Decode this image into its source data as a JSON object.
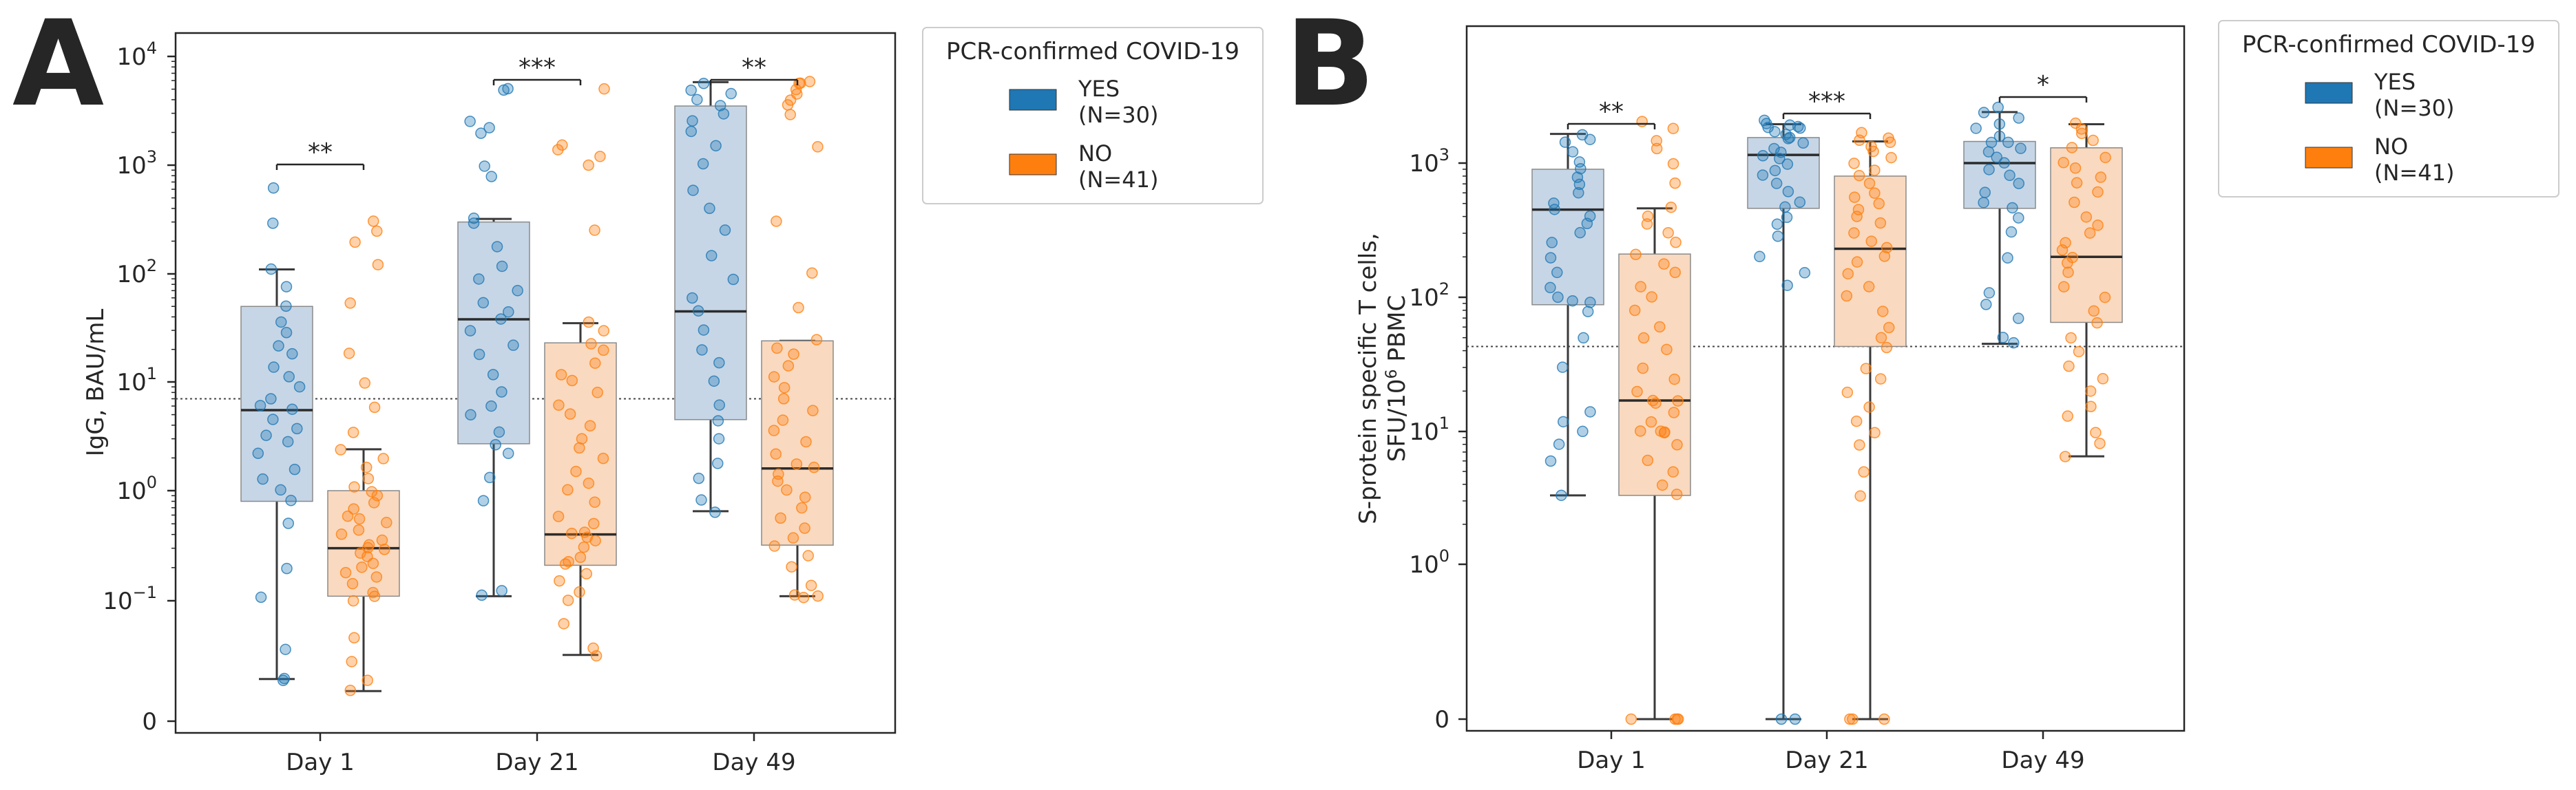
{
  "colors": {
    "yes": "#1f77b4",
    "no": "#ff7f0e",
    "yes_box": "#c6d6e6",
    "no_box": "#f9d9bf",
    "axis": "#262626",
    "threshold": "#444444"
  },
  "panels": [
    {
      "letter": "A"
    },
    {
      "letter": "B"
    }
  ],
  "legend": {
    "title": "PCR-confirmed COVID-19",
    "entries": [
      {
        "label": "YES",
        "n": "(N=30)"
      },
      {
        "label": "NO",
        "n": "(N=41)"
      }
    ]
  },
  "chart_data": [
    {
      "type": "box",
      "panel": "A",
      "scale": "symlog",
      "ylabel": "IgG, BAU/mL",
      "yticks": [
        {
          "base": "0",
          "exp": ""
        },
        {
          "base": "10",
          "exp": "−1"
        },
        {
          "base": "10",
          "exp": "0"
        },
        {
          "base": "10",
          "exp": "1"
        },
        {
          "base": "10",
          "exp": "2"
        },
        {
          "base": "10",
          "exp": "3"
        },
        {
          "base": "10",
          "exp": "4"
        }
      ],
      "ytick_values": [
        0,
        0.1,
        1,
        10,
        100,
        1000,
        10000
      ],
      "threshold": 7,
      "categories": [
        "Day 1",
        "Day 21",
        "Day 49"
      ],
      "series": [
        {
          "name": "YES",
          "boxes": [
            {
              "whisker_low": 0.035,
              "q1": 0.8,
              "median": 5.5,
              "q3": 50,
              "whisker_high": 110,
              "points": [
                0.035,
                0.035,
                0.06,
                0.11,
                0.2,
                0.5,
                0.8,
                1,
                1.3,
                1.6,
                2.2,
                2.8,
                3.2,
                3.8,
                4.5,
                5.5,
                6,
                7,
                9,
                11,
                14,
                18,
                22,
                28,
                35,
                50,
                75,
                110,
                300,
                600
              ]
            },
            {
              "whisker_low": 0.11,
              "q1": 2.7,
              "median": 38,
              "q3": 300,
              "whisker_high": 320,
              "points": [
                0.11,
                0.12,
                0.8,
                1.3,
                2.2,
                2.7,
                3.5,
                5,
                6,
                8,
                12,
                18,
                22,
                30,
                38,
                45,
                55,
                70,
                90,
                120,
                180,
                300,
                320,
                800,
                1000,
                2000,
                2200,
                2500,
                5000,
                5200
              ]
            },
            {
              "whisker_low": 0.65,
              "q1": 4.5,
              "median": 45,
              "q3": 3500,
              "whisker_high": 5800,
              "points": [
                0.65,
                0.8,
                1.3,
                1.8,
                3,
                4.5,
                6,
                10,
                15,
                20,
                30,
                45,
                60,
                90,
                150,
                250,
                400,
                600,
                1000,
                1500,
                2000,
                2500,
                3000,
                3500,
                4000,
                4500,
                5000,
                5800
              ]
            }
          ]
        },
        {
          "name": "NO",
          "boxes": [
            {
              "whisker_low": 0.025,
              "q1": 0.11,
              "median": 0.3,
              "q3": 1,
              "whisker_high": 2.4,
              "points": [
                0.025,
                0.035,
                0.05,
                0.07,
                0.1,
                0.11,
                0.12,
                0.14,
                0.16,
                0.18,
                0.2,
                0.22,
                0.25,
                0.27,
                0.3,
                0.3,
                0.32,
                0.35,
                0.4,
                0.45,
                0.5,
                0.55,
                0.6,
                0.7,
                0.8,
                0.9,
                1,
                1.1,
                1.3,
                1.6,
                2,
                2.4,
                3.5,
                6,
                10,
                18,
                55,
                120,
                200,
                250,
                300
              ]
            },
            {
              "whisker_low": 0.055,
              "q1": 0.21,
              "median": 0.4,
              "q3": 23,
              "whisker_high": 35,
              "points": [
                0.055,
                0.06,
                0.08,
                0.1,
                0.12,
                0.15,
                0.18,
                0.21,
                0.23,
                0.25,
                0.3,
                0.35,
                0.38,
                0.4,
                0.42,
                0.5,
                0.6,
                0.8,
                1,
                1.2,
                1.5,
                2,
                2.5,
                3,
                4,
                5,
                6,
                8,
                10,
                12,
                15,
                20,
                23,
                30,
                35,
                250,
                1000,
                1200,
                1400,
                1500,
                5000
              ]
            },
            {
              "whisker_low": 0.11,
              "q1": 0.32,
              "median": 1.6,
              "q3": 24,
              "whisker_high": 24,
              "points": [
                0.11,
                0.11,
                0.11,
                0.14,
                0.2,
                0.25,
                0.32,
                0.38,
                0.45,
                0.55,
                0.7,
                0.85,
                1,
                1.2,
                1.4,
                1.6,
                1.8,
                2.2,
                2.8,
                3.5,
                4.5,
                5.5,
                7,
                9,
                11,
                14,
                18,
                20,
                24,
                50,
                100,
                300,
                1500,
                3000,
                3500,
                4000,
                4500,
                5000,
                5500,
                5800,
                6000
              ]
            }
          ]
        }
      ],
      "significance": [
        "**",
        "***",
        "**"
      ]
    },
    {
      "type": "box",
      "panel": "B",
      "scale": "symlog",
      "ylabel": "S-protein specific T cells,",
      "ylabel2_prefix": "SFU/10",
      "ylabel2_exp": "6",
      "ylabel2_suffix": " PBMC",
      "yticks": [
        {
          "base": "0",
          "exp": ""
        },
        {
          "base": "10",
          "exp": "0"
        },
        {
          "base": "10",
          "exp": "1"
        },
        {
          "base": "10",
          "exp": "2"
        },
        {
          "base": "10",
          "exp": "3"
        }
      ],
      "ytick_values": [
        0,
        1,
        10,
        100,
        1000
      ],
      "threshold": 43,
      "categories": [
        "Day 1",
        "Day 21",
        "Day 49"
      ],
      "series": [
        {
          "name": "YES",
          "boxes": [
            {
              "whisker_low": 3.3,
              "q1": 88,
              "median": 450,
              "q3": 900,
              "whisker_high": 1650,
              "points": [
                3.3,
                6,
                8,
                10,
                12,
                14,
                30,
                50,
                80,
                90,
                95,
                100,
                120,
                150,
                200,
                250,
                300,
                350,
                400,
                450,
                500,
                600,
                700,
                800,
                900,
                1000,
                1200,
                1400,
                1500,
                1650
              ]
            },
            {
              "whisker_low": 0,
              "q1": 460,
              "median": 1150,
              "q3": 1550,
              "whisker_high": 1950,
              "points": [
                0,
                0,
                120,
                150,
                200,
                280,
                350,
                400,
                460,
                500,
                600,
                700,
                800,
                900,
                1000,
                1100,
                1150,
                1200,
                1300,
                1400,
                1500,
                1550,
                1600,
                1700,
                1800,
                1850,
                1900,
                1950,
                2000,
                2100
              ]
            },
            {
              "whisker_low": 45,
              "q1": 460,
              "median": 1000,
              "q3": 1450,
              "whisker_high": 2400,
              "points": [
                45,
                50,
                70,
                90,
                110,
                200,
                300,
                400,
                460,
                500,
                600,
                700,
                800,
                900,
                1000,
                1100,
                1200,
                1300,
                1400,
                1450,
                1600,
                1800,
                2000,
                2200,
                2400,
                2600
              ]
            }
          ]
        },
        {
          "name": "NO",
          "boxes": [
            {
              "whisker_low": 0,
              "q1": 3.3,
              "median": 17,
              "q3": 210,
              "whisker_high": 460,
              "points": [
                0,
                0,
                0,
                0,
                3.3,
                4,
                5,
                6,
                8,
                10,
                10,
                10,
                10,
                12,
                14,
                16,
                17,
                17,
                20,
                25,
                30,
                40,
                50,
                60,
                80,
                100,
                120,
                150,
                180,
                210,
                260,
                300,
                350,
                400,
                460,
                700,
                1000,
                1300,
                1500,
                1800,
                2000
              ]
            },
            {
              "whisker_low": 0,
              "q1": 43,
              "median": 230,
              "q3": 800,
              "whisker_high": 1450,
              "points": [
                0,
                0,
                0,
                3.3,
                5,
                8,
                10,
                12,
                15,
                20,
                25,
                30,
                43,
                50,
                60,
                80,
                100,
                120,
                150,
                180,
                200,
                230,
                260,
                300,
                350,
                400,
                450,
                500,
                550,
                600,
                700,
                800,
                900,
                1000,
                1100,
                1200,
                1300,
                1400,
                1450,
                1500,
                1700
              ]
            },
            {
              "whisker_low": 6.5,
              "q1": 65,
              "median": 200,
              "q3": 1300,
              "whisker_high": 1950,
              "points": [
                6.5,
                8,
                10,
                13,
                15,
                20,
                25,
                30,
                40,
                50,
                65,
                80,
                100,
                120,
                150,
                180,
                200,
                220,
                250,
                300,
                350,
                400,
                500,
                600,
                700,
                800,
                900,
                1000,
                1100,
                1300,
                1500,
                1700,
                1800,
                1950
              ]
            }
          ]
        }
      ],
      "significance": [
        "**",
        "***",
        "*"
      ]
    }
  ]
}
